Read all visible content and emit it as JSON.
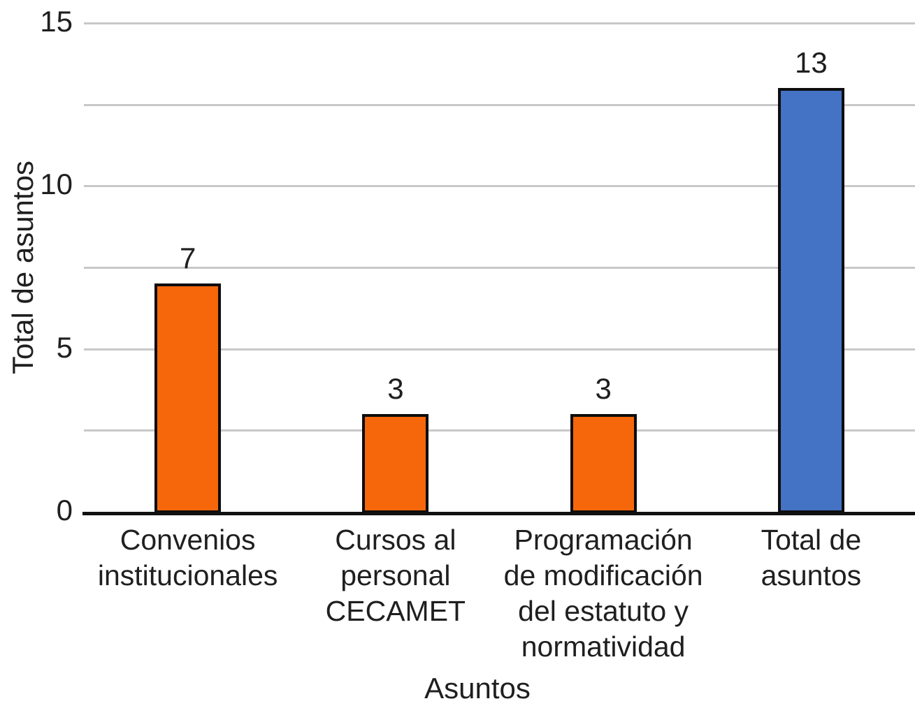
{
  "chart_data": {
    "type": "bar",
    "title": "",
    "xlabel": "Asuntos",
    "ylabel": "Total de asuntos",
    "categories": [
      "Convenios institucionales",
      "Cursos al personal CECAMET",
      "Programación de modificación del estatuto y normatividad",
      "Total de asuntos"
    ],
    "category_lines": [
      [
        "Convenios",
        "institucionales"
      ],
      [
        "Cursos al",
        "personal",
        "CECAMET"
      ],
      [
        "Programación",
        "de modificación",
        "del estatuto y",
        "normatividad"
      ],
      [
        "Total de",
        "asuntos"
      ]
    ],
    "values": [
      7,
      3,
      3,
      13
    ],
    "data_labels": [
      "7",
      "3",
      "3",
      "13"
    ],
    "bar_colors": [
      "#F5670A",
      "#F5670A",
      "#F5670A",
      "#4472C4"
    ],
    "ylim": [
      0,
      15
    ],
    "yticks": [
      {
        "value": 0,
        "label": "0"
      },
      {
        "value": 5,
        "label": "5"
      },
      {
        "value": 10,
        "label": "10"
      },
      {
        "value": 15,
        "label": "15"
      }
    ],
    "gridline_values": [
      2.5,
      5,
      7.5,
      10,
      12.5,
      15
    ],
    "grid": true,
    "legend_position": "none"
  },
  "colors": {
    "bar_orange": "#F5670A",
    "bar_blue": "#4472C4",
    "bar_border": "#0D0D0D",
    "gridline": "#C8C8C8",
    "axis_line": "#111111",
    "text": "#1F1F1F",
    "background": "#FFFFFF"
  }
}
